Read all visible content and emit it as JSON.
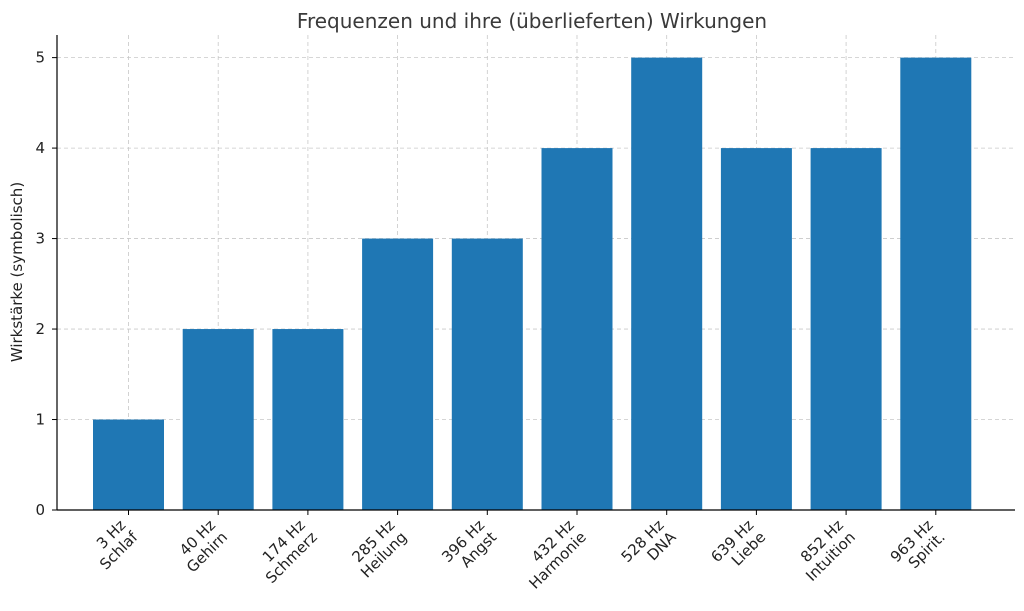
{
  "chart_data": {
    "type": "bar",
    "title": "Frequenzen und ihre (überlieferten) Wirkungen",
    "xlabel": "",
    "ylabel": "Wirkstärke (symbolisch)",
    "categories": [
      [
        "3 Hz",
        "Schlaf"
      ],
      [
        "40 Hz",
        "Gehirn"
      ],
      [
        "174 Hz",
        "Schmerz"
      ],
      [
        "285 Hz",
        "Heilung"
      ],
      [
        "396 Hz",
        "Angst"
      ],
      [
        "432 Hz",
        "Harmonie"
      ],
      [
        "528 Hz",
        "DNA"
      ],
      [
        "639 Hz",
        "Liebe"
      ],
      [
        "852 Hz",
        "Intuition"
      ],
      [
        "963 Hz",
        "Spirit."
      ]
    ],
    "values": [
      1,
      2,
      2,
      3,
      3,
      4,
      5,
      4,
      4,
      5
    ],
    "ylim": [
      0,
      5.25
    ],
    "yticks": [
      "0",
      "1",
      "2",
      "3",
      "4",
      "5"
    ],
    "grid": true,
    "bar_color": "#1f77b4"
  }
}
